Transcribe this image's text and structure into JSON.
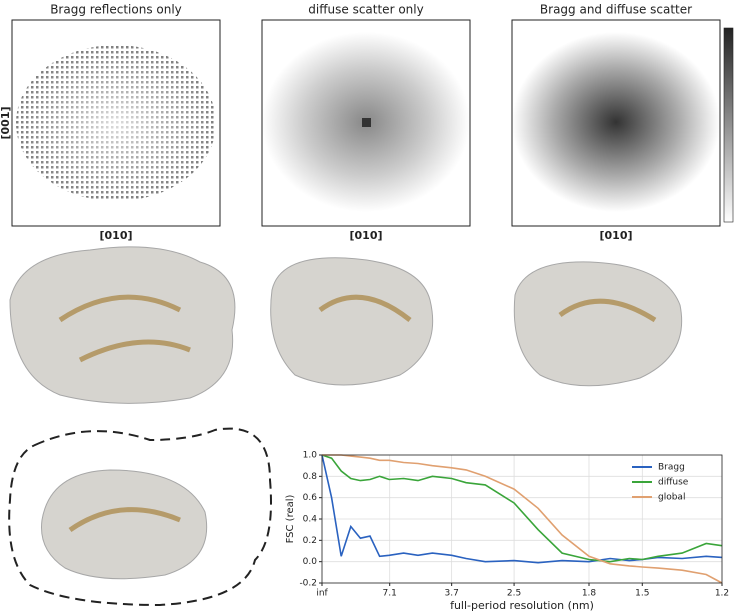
{
  "panels": [
    {
      "title": "Bragg reflections only",
      "xlabel": "[010]"
    },
    {
      "title": "diffuse scatter only",
      "xlabel": "[010]"
    },
    {
      "title": "Bragg and diffuse scatter",
      "xlabel": "[010]"
    }
  ],
  "ylabel": "[001]",
  "chart_data": {
    "type": "line",
    "xlabel": "full-period resolution (nm)",
    "ylabel": "FSC (real)",
    "x": [
      0,
      0.02,
      0.04,
      0.06,
      0.08,
      0.1,
      0.12,
      0.14,
      0.17,
      0.2,
      0.23,
      0.27,
      0.3,
      0.34,
      0.4,
      0.45,
      0.5,
      0.556,
      0.6,
      0.64,
      0.667,
      0.7,
      0.75,
      0.8,
      0.833
    ],
    "series": [
      {
        "name": "Bragg",
        "color": "#2a62c0",
        "values": [
          1.0,
          0.6,
          0.05,
          0.33,
          0.22,
          0.24,
          0.05,
          0.06,
          0.08,
          0.06,
          0.08,
          0.06,
          0.03,
          0.0,
          0.01,
          -0.01,
          0.01,
          0.0,
          0.03,
          0.01,
          0.02,
          0.04,
          0.03,
          0.05,
          0.04
        ]
      },
      {
        "name": "diffuse",
        "color": "#3aa53a",
        "values": [
          1.0,
          0.97,
          0.85,
          0.78,
          0.76,
          0.77,
          0.8,
          0.77,
          0.78,
          0.76,
          0.8,
          0.78,
          0.74,
          0.72,
          0.55,
          0.3,
          0.08,
          0.02,
          0.0,
          0.03,
          0.02,
          0.05,
          0.08,
          0.17,
          0.15
        ]
      },
      {
        "name": "global",
        "color": "#e0a070",
        "values": [
          1.0,
          1.0,
          1.0,
          0.99,
          0.98,
          0.97,
          0.95,
          0.95,
          0.93,
          0.92,
          0.9,
          0.88,
          0.86,
          0.8,
          0.68,
          0.5,
          0.25,
          0.05,
          -0.02,
          -0.04,
          -0.05,
          -0.06,
          -0.08,
          -0.12,
          -0.2
        ]
      }
    ],
    "xlim": [
      0,
      0.833
    ],
    "xticks": [
      {
        "value": 0,
        "label": "inf"
      },
      {
        "value": 0.141,
        "label": "7.1"
      },
      {
        "value": 0.27,
        "label": "3.7"
      },
      {
        "value": 0.4,
        "label": "2.5"
      },
      {
        "value": 0.556,
        "label": "1.8"
      },
      {
        "value": 0.667,
        "label": "1.5"
      },
      {
        "value": 0.833,
        "label": "1.2"
      }
    ],
    "ylim": [
      -0.2,
      1.0
    ],
    "yticks": [
      -0.2,
      {
        "value": 0,
        "label": "0.0"
      },
      0.2,
      0.4,
      0.6,
      0.8,
      {
        "value": 1,
        "label": "1.0"
      }
    ],
    "grid": true,
    "legend": "upper right"
  }
}
